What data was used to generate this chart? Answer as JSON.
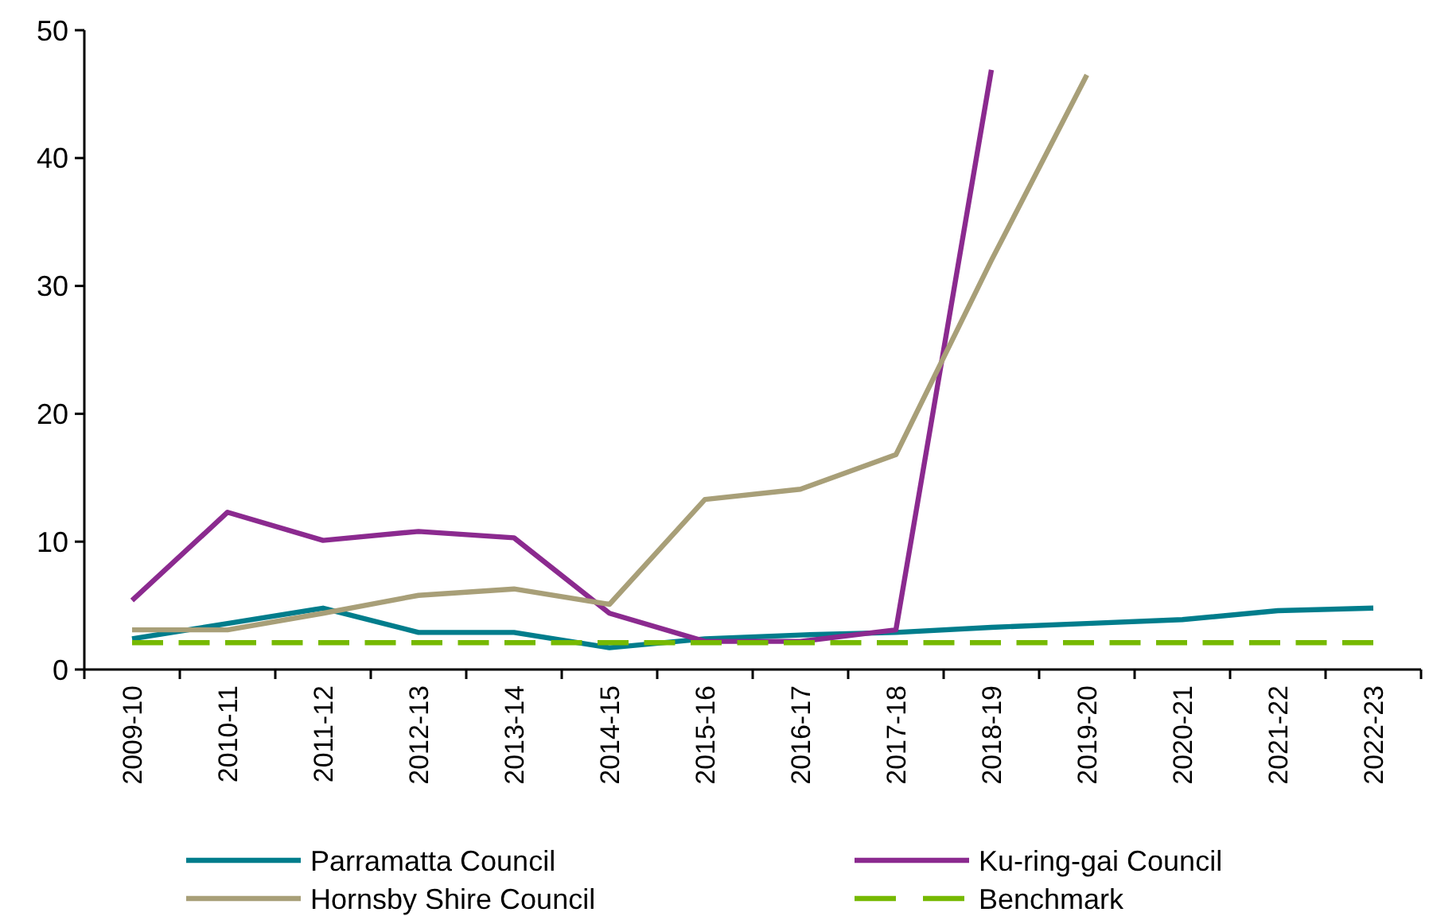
{
  "chart_data": {
    "type": "line",
    "categories": [
      "2009-10",
      "2010-11",
      "2011-12",
      "2012-13",
      "2013-14",
      "2014-15",
      "2015-16",
      "2016-17",
      "2017-18",
      "2018-19",
      "2019-20",
      "2020-21",
      "2021-22",
      "2022-23"
    ],
    "series": [
      {
        "name": "Parramatta Council",
        "color": "#007d8c",
        "values": [
          2.4,
          3.6,
          4.8,
          2.9,
          2.9,
          1.7,
          2.4,
          2.7,
          2.9,
          3.3,
          3.6,
          3.9,
          4.6,
          4.8
        ]
      },
      {
        "name": "Ku-ring-gai Council",
        "color": "#8b2a8f",
        "values": [
          5.4,
          12.3,
          10.1,
          10.8,
          10.3,
          4.4,
          2.2,
          2.2,
          3.1,
          46.9,
          null,
          null,
          null,
          null
        ]
      },
      {
        "name": "Hornsby Shire Council",
        "color": "#a89f78",
        "values": [
          3.1,
          3.1,
          4.4,
          5.8,
          6.3,
          5.1,
          13.3,
          14.1,
          16.8,
          32.0,
          46.5,
          null,
          null,
          null
        ]
      },
      {
        "name": "Benchmark",
        "color": "#76b900",
        "line_style": "dashed",
        "values": [
          2.1,
          2.1,
          2.1,
          2.1,
          2.1,
          2.1,
          2.1,
          2.1,
          2.1,
          2.1,
          2.1,
          2.1,
          2.1,
          2.1
        ]
      }
    ],
    "ylim": [
      0,
      50
    ],
    "yticks": [
      0,
      10,
      20,
      30,
      40,
      50
    ],
    "grid": false,
    "legend": "bottom",
    "marker": "none"
  }
}
